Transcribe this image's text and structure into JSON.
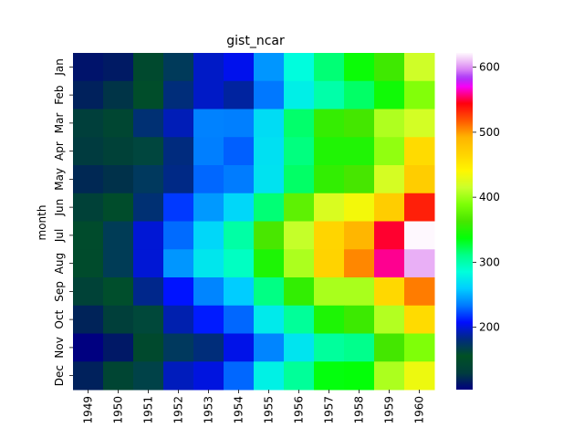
{
  "chart_data": {
    "type": "heatmap",
    "title": "gist_ncar",
    "xlabel": "",
    "ylabel": "month",
    "colormap": "gist_ncar",
    "x_categories": [
      "1949",
      "1950",
      "1951",
      "1952",
      "1953",
      "1954",
      "1955",
      "1956",
      "1957",
      "1958",
      "1959",
      "1960"
    ],
    "y_categories": [
      "Jan",
      "Feb",
      "Mar",
      "Apr",
      "May",
      "Jun",
      "Jul",
      "Aug",
      "Sep",
      "Oct",
      "Nov",
      "Dec"
    ],
    "values": [
      [
        112,
        115,
        145,
        171,
        196,
        204,
        242,
        284,
        315,
        340,
        360,
        417
      ],
      [
        118,
        126,
        150,
        180,
        196,
        188,
        233,
        277,
        301,
        318,
        342,
        391
      ],
      [
        132,
        141,
        178,
        193,
        236,
        235,
        267,
        317,
        356,
        362,
        406,
        419
      ],
      [
        129,
        135,
        163,
        181,
        235,
        227,
        269,
        313,
        348,
        348,
        396,
        461
      ],
      [
        121,
        125,
        172,
        183,
        229,
        234,
        270,
        318,
        355,
        363,
        420,
        472
      ],
      [
        135,
        149,
        178,
        218,
        243,
        264,
        315,
        374,
        422,
        435,
        472,
        535
      ],
      [
        148,
        170,
        199,
        230,
        264,
        302,
        364,
        413,
        465,
        491,
        548,
        622
      ],
      [
        148,
        170,
        199,
        242,
        272,
        293,
        347,
        405,
        467,
        505,
        559,
        606
      ],
      [
        136,
        158,
        184,
        209,
        237,
        259,
        312,
        355,
        404,
        404,
        463,
        508
      ],
      [
        119,
        133,
        162,
        191,
        211,
        229,
        274,
        306,
        347,
        359,
        407,
        461
      ],
      [
        104,
        114,
        146,
        172,
        180,
        203,
        237,
        271,
        305,
        310,
        362,
        390
      ],
      [
        118,
        140,
        166,
        194,
        201,
        229,
        278,
        306,
        336,
        337,
        405,
        432
      ]
    ],
    "vmin": 104,
    "vmax": 622,
    "colorbar_ticks": [
      200,
      300,
      400,
      500,
      600
    ],
    "grid": false,
    "legend": "colorbar-right"
  }
}
